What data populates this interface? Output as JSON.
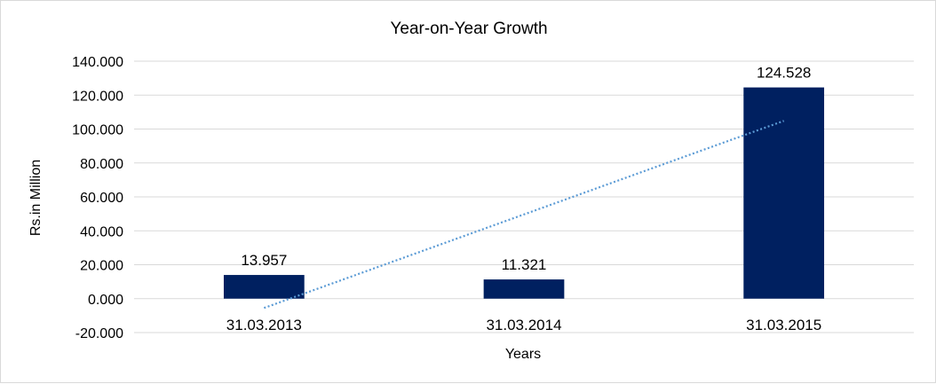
{
  "chart_data": {
    "type": "bar",
    "title": "Year-on-Year Growth",
    "xlabel": "Years",
    "ylabel": "Rs.in Million",
    "categories": [
      "31.03.2013",
      "31.03.2014",
      "31.03.2015"
    ],
    "values": [
      13.957,
      11.321,
      124.528
    ],
    "value_labels": [
      "13.957",
      "11.321",
      "124.528"
    ],
    "ylim": [
      -20,
      140
    ],
    "yticks": [
      -20,
      0,
      20,
      40,
      60,
      80,
      100,
      120,
      140
    ],
    "ytick_labels": [
      "-20.000",
      "0.000",
      "20.000",
      "40.000",
      "60.000",
      "80.000",
      "100.000",
      "120.000",
      "140.000"
    ],
    "grid": true,
    "legend": "none",
    "bar_color": "#002060",
    "trendline": {
      "type": "linear",
      "style": "dotted",
      "color": "#5b9bd5",
      "start_value": -5.5,
      "end_value": 104.8
    }
  }
}
